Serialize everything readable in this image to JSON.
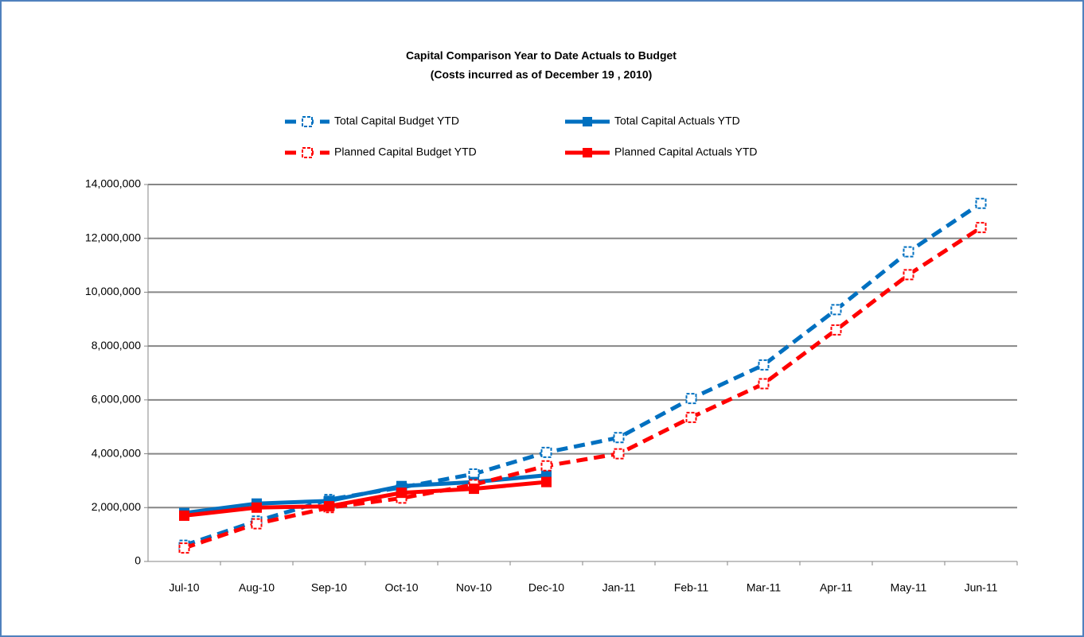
{
  "chart_data": {
    "type": "line",
    "title": "Capital Comparison Year to Date Actuals to Budget",
    "subtitle": "(Costs incurred as of December 19 , 2010)",
    "categories": [
      "Jul-10",
      "Aug-10",
      "Sep-10",
      "Oct-10",
      "Nov-10",
      "Dec-10",
      "Jan-11",
      "Feb-11",
      "Mar-11",
      "Apr-11",
      "May-11",
      "Jun-11"
    ],
    "series": [
      {
        "name": "Total Capital Budget YTD",
        "color": "#0070c0",
        "line_style": "dashed",
        "marker": "open-square",
        "values": [
          600000,
          1500000,
          2300000,
          2750000,
          3250000,
          4050000,
          4600000,
          6050000,
          7300000,
          9350000,
          11500000,
          13300000
        ]
      },
      {
        "name": "Total Capital Actuals YTD",
        "color": "#0070c0",
        "line_style": "solid",
        "marker": "square",
        "values": [
          1800000,
          2150000,
          2250000,
          2800000,
          2950000,
          3200000,
          null,
          null,
          null,
          null,
          null,
          null
        ]
      },
      {
        "name": "Planned Capital Budget YTD",
        "color": "#ff0000",
        "line_style": "dashed",
        "marker": "open-square",
        "values": [
          500000,
          1400000,
          2000000,
          2350000,
          2850000,
          3550000,
          4000000,
          5350000,
          6600000,
          8600000,
          10650000,
          12400000
        ]
      },
      {
        "name": "Planned Capital Actuals YTD",
        "color": "#ff0000",
        "line_style": "solid",
        "marker": "square",
        "values": [
          1700000,
          2000000,
          2050000,
          2550000,
          2700000,
          2950000,
          null,
          null,
          null,
          null,
          null,
          null
        ]
      }
    ],
    "ylim": [
      0,
      14000000
    ],
    "yticks": [
      0,
      {
        "value": 2000000,
        "label": "2,000,000"
      },
      {
        "value": 4000000,
        "label": "4,000,000"
      },
      {
        "value": 6000000,
        "label": "6,000,000"
      },
      {
        "value": 8000000,
        "label": "8,000,000"
      },
      {
        "value": 10000000,
        "label": "10,000,000"
      },
      {
        "value": 12000000,
        "label": "12,000,000"
      },
      {
        "value": 14000000,
        "label": "14,000,000"
      }
    ],
    "grid": true,
    "legend": "top"
  }
}
